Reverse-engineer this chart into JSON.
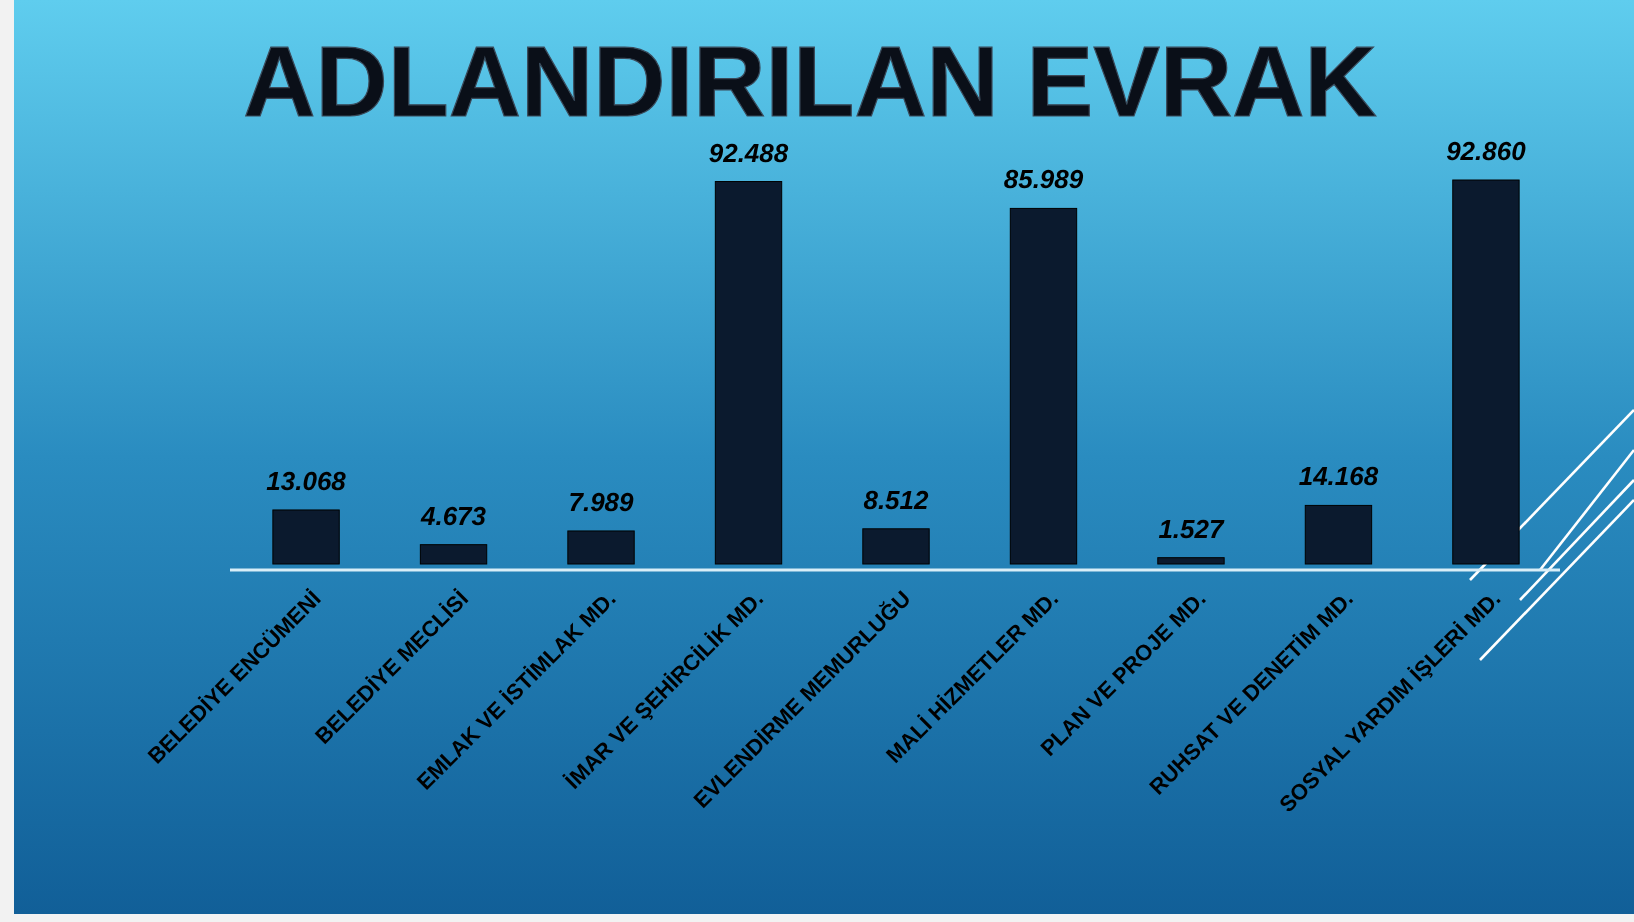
{
  "chart_data": {
    "type": "bar",
    "title": "ADLANDIRILAN EVRAK",
    "categories": [
      "BELEDİYE ENCÜMENİ",
      "BELEDİYE MECLİSİ",
      "EMLAK VE İSTİMLAK MD.",
      "İMAR VE ŞEHİRCİLİK MD.",
      "EVLENDİRME MEMURLUĞU",
      "MALİ HİZMETLER MD.",
      "PLAN VE PROJE MD.",
      "RUHSAT VE DENETİM MD.",
      "SOSYAL YARDIM İŞLERİ MD."
    ],
    "values": [
      13068,
      4673,
      7989,
      92488,
      8512,
      85989,
      1527,
      14168,
      92860
    ],
    "value_labels": [
      "13.068",
      "4.673",
      "7.989",
      "92.488",
      "8.512",
      "85.989",
      "1.527",
      "14.168",
      "92.860"
    ],
    "color": "#0b1a2e"
  }
}
